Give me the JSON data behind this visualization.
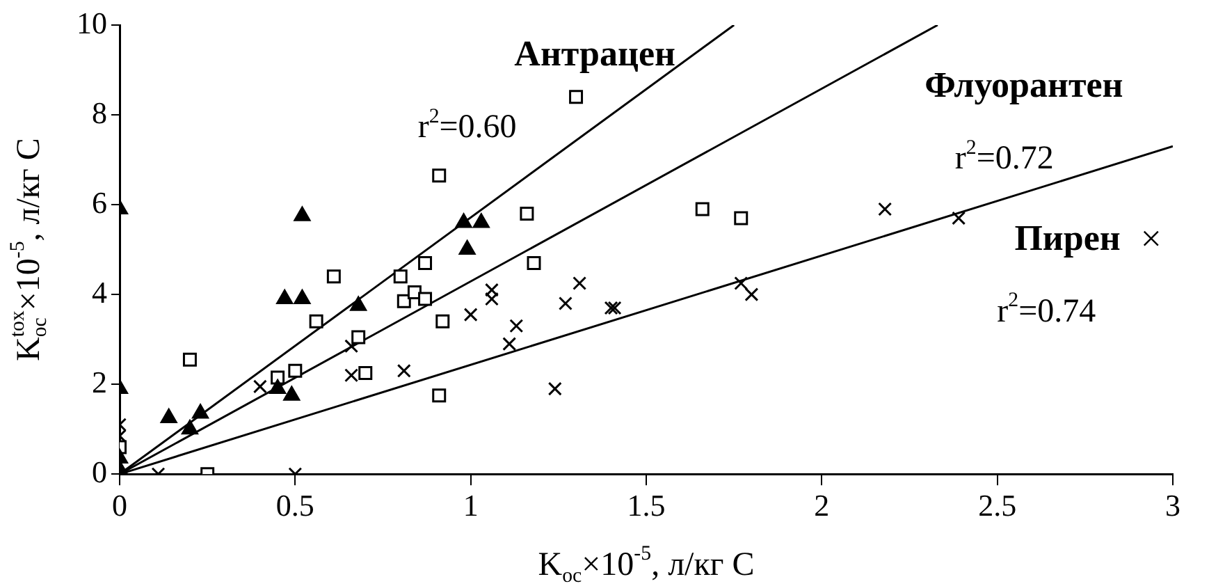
{
  "chart_data": {
    "type": "scatter",
    "xlabel": "K$_{oc}$×10$^{-5}$, л/кг C",
    "ylabel": "K$_{oc}$$^{tox}$×10$^{-5}$, л/кг C",
    "xlim": [
      0,
      3
    ],
    "xticks": [
      0,
      0.5,
      1,
      1.5,
      2,
      2.5,
      3
    ],
    "ylim": [
      0,
      10
    ],
    "yticks": [
      0,
      2,
      4,
      6,
      8,
      10
    ],
    "grid": false,
    "legend": "right",
    "annotations": [
      "r$^{2}$=0.60",
      "r$^{2}$=0.72",
      "r$^{2}$=0.74"
    ],
    "series": [
      {
        "color": "#000000",
        "marker": "triangle",
        "x": [
          0,
          0,
          0,
          0,
          0.14,
          0.2,
          0.23,
          0.45,
          0.49,
          0.47,
          0.52,
          0.52,
          0.68,
          0.98,
          1.03,
          0.99
        ],
        "values": [
          5.9,
          1.9,
          0.35,
          0.1,
          1.25,
          1.0,
          1.35,
          1.9,
          1.75,
          3.9,
          3.9,
          5.75,
          3.75,
          5.6,
          5.6,
          5.0
        ]
      },
      {
        "color": "#000000",
        "marker": "square",
        "x": [
          0,
          0.2,
          0.25,
          0.45,
          0.5,
          0.56,
          0.61,
          0.68,
          0.7,
          0.8,
          0.81,
          0.84,
          0.87,
          0.87,
          0.92,
          0.91,
          0.91,
          1.3,
          1.16,
          1.18,
          1.66,
          1.77
        ],
        "values": [
          0.6,
          2.55,
          0,
          2.15,
          2.3,
          3.4,
          4.4,
          3.05,
          2.25,
          4.4,
          3.85,
          4.05,
          4.7,
          3.9,
          3.4,
          6.65,
          1.75,
          8.4,
          5.8,
          4.7,
          5.9,
          5.7
        ]
      },
      {
        "name": "Пирен",
        "color": "#000000",
        "marker": "cross",
        "x": [
          0,
          0,
          0.11,
          0.5,
          0.4,
          0.66,
          0.66,
          0.81,
          1.0,
          1.06,
          1.06,
          1.31,
          1.27,
          1.13,
          1.11,
          1.24,
          1.4,
          1.41,
          1.77,
          1.8,
          2.18,
          2.39
        ],
        "values": [
          1.1,
          0.85,
          0,
          0,
          1.95,
          2.85,
          2.2,
          2.3,
          3.55,
          4.1,
          3.9,
          4.25,
          3.8,
          3.3,
          2.9,
          1.9,
          3.7,
          3.7,
          4.25,
          4.0,
          5.9,
          5.7
        ]
      },
      {
        "type": "line",
        "name": "Антрацен",
        "color": "#000000",
        "marker": "none",
        "x": [
          0,
          1.75
        ],
        "values": [
          0,
          10
        ]
      },
      {
        "type": "line",
        "name": "Флуорантен",
        "color": "#000000",
        "marker": "none",
        "x": [
          0,
          2.33
        ],
        "values": [
          0,
          10
        ]
      },
      {
        "type": "line",
        "color": "#000000",
        "marker": "none",
        "x": [
          0,
          3
        ],
        "values": [
          0,
          7.3
        ]
      }
    ]
  }
}
